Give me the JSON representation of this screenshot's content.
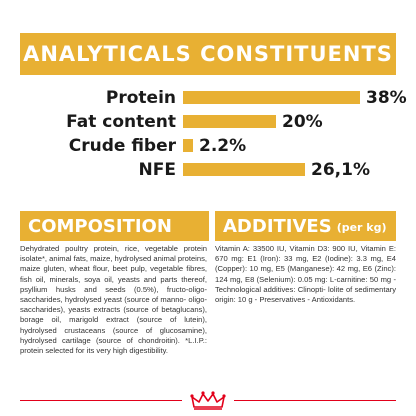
{
  "title": "ANALYTICALS CONSTITUENTS",
  "constituents": [
    {
      "label": "Protein",
      "value_label": "38%",
      "fraction": 0.38
    },
    {
      "label": "Fat content",
      "value_label": "20%",
      "fraction": 0.2
    },
    {
      "label": "Crude fiber",
      "value_label": "2.2%",
      "fraction": 0.022
    },
    {
      "label": "NFE",
      "value_label": "26,1%",
      "fraction": 0.261
    }
  ],
  "composition": {
    "heading": "COMPOSITION",
    "text": "Dehydrated poultry protein, rice, vegetable protein isolate*, animal fats, maize, hydrolysed animal proteins, maize gluten, wheat flour, beet pulp, vegetable fibres, fish oil, minerals, soya oil, yeasts and parts thereof, psyllium husks and seeds (0.5%), fructo-oligo-saccharides, hydrolysed yeast (source of manno- oligo-saccharides), yeasts extracts (source of betaglucans), borage oil, marigold extract (source of lutein), hydrolysed crustaceans (source of glucosamine), hydrolysed cartilage (source of chondroitin). *L.I.P.: protein selected for its very high digestibility."
  },
  "additives": {
    "heading": "ADDITIVES",
    "unit": "(per kg)",
    "text": "Vitamin A: 33500 IU, Vitamin D3: 900 IU, Vitamin E: 670 mg: E1 (Iron): 33 mg, E2 (Iodine): 3.3 mg, E4 (Copper): 10 mg, E5 (Manganese): 42 mg, E6 (Zinc): 124 mg, E8 (Selenium): 0.05 mg: L-carnitine: 50 mg - Technological additives: Clinopti- lolite of sedimentary origin: 10 g - Preservatives - Antioxidants."
  },
  "colors": {
    "accent": "#e8b033",
    "brand_red": "#e2001a"
  }
}
